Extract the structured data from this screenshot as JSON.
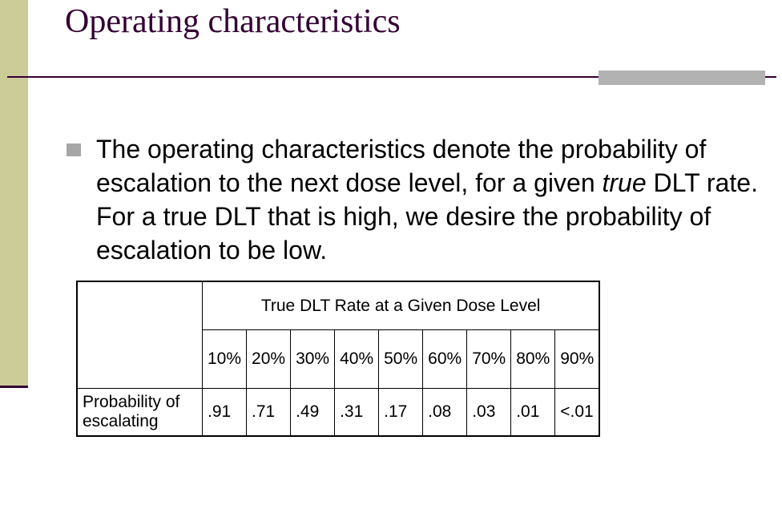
{
  "slide": {
    "title": "Operating characteristics",
    "bullet": {
      "before_italic": "The operating characteristics denote the probability of escalation to the next dose level, for a given ",
      "italic": "true",
      "after_italic": " DLT rate.  For a true DLT that is high, we desire the probability of escalation to be low."
    }
  },
  "table": {
    "header": "True DLT Rate at a Given Dose Level",
    "rates": [
      "10%",
      "20%",
      "30%",
      "40%",
      "50%",
      "60%",
      "70%",
      "80%",
      "90%"
    ],
    "row_label_line1": "Probability of",
    "row_label_line2": "escalating",
    "values": [
      ".91",
      ".71",
      ".49",
      ".31",
      ".17",
      ".08",
      ".03",
      ".01",
      "<.01"
    ]
  },
  "colors": {
    "left_bar": "#cccc99",
    "title_text": "#330033",
    "rule": "#330033",
    "rule_accent": "#b2b2b2",
    "bullet": "#a6a6a6"
  }
}
